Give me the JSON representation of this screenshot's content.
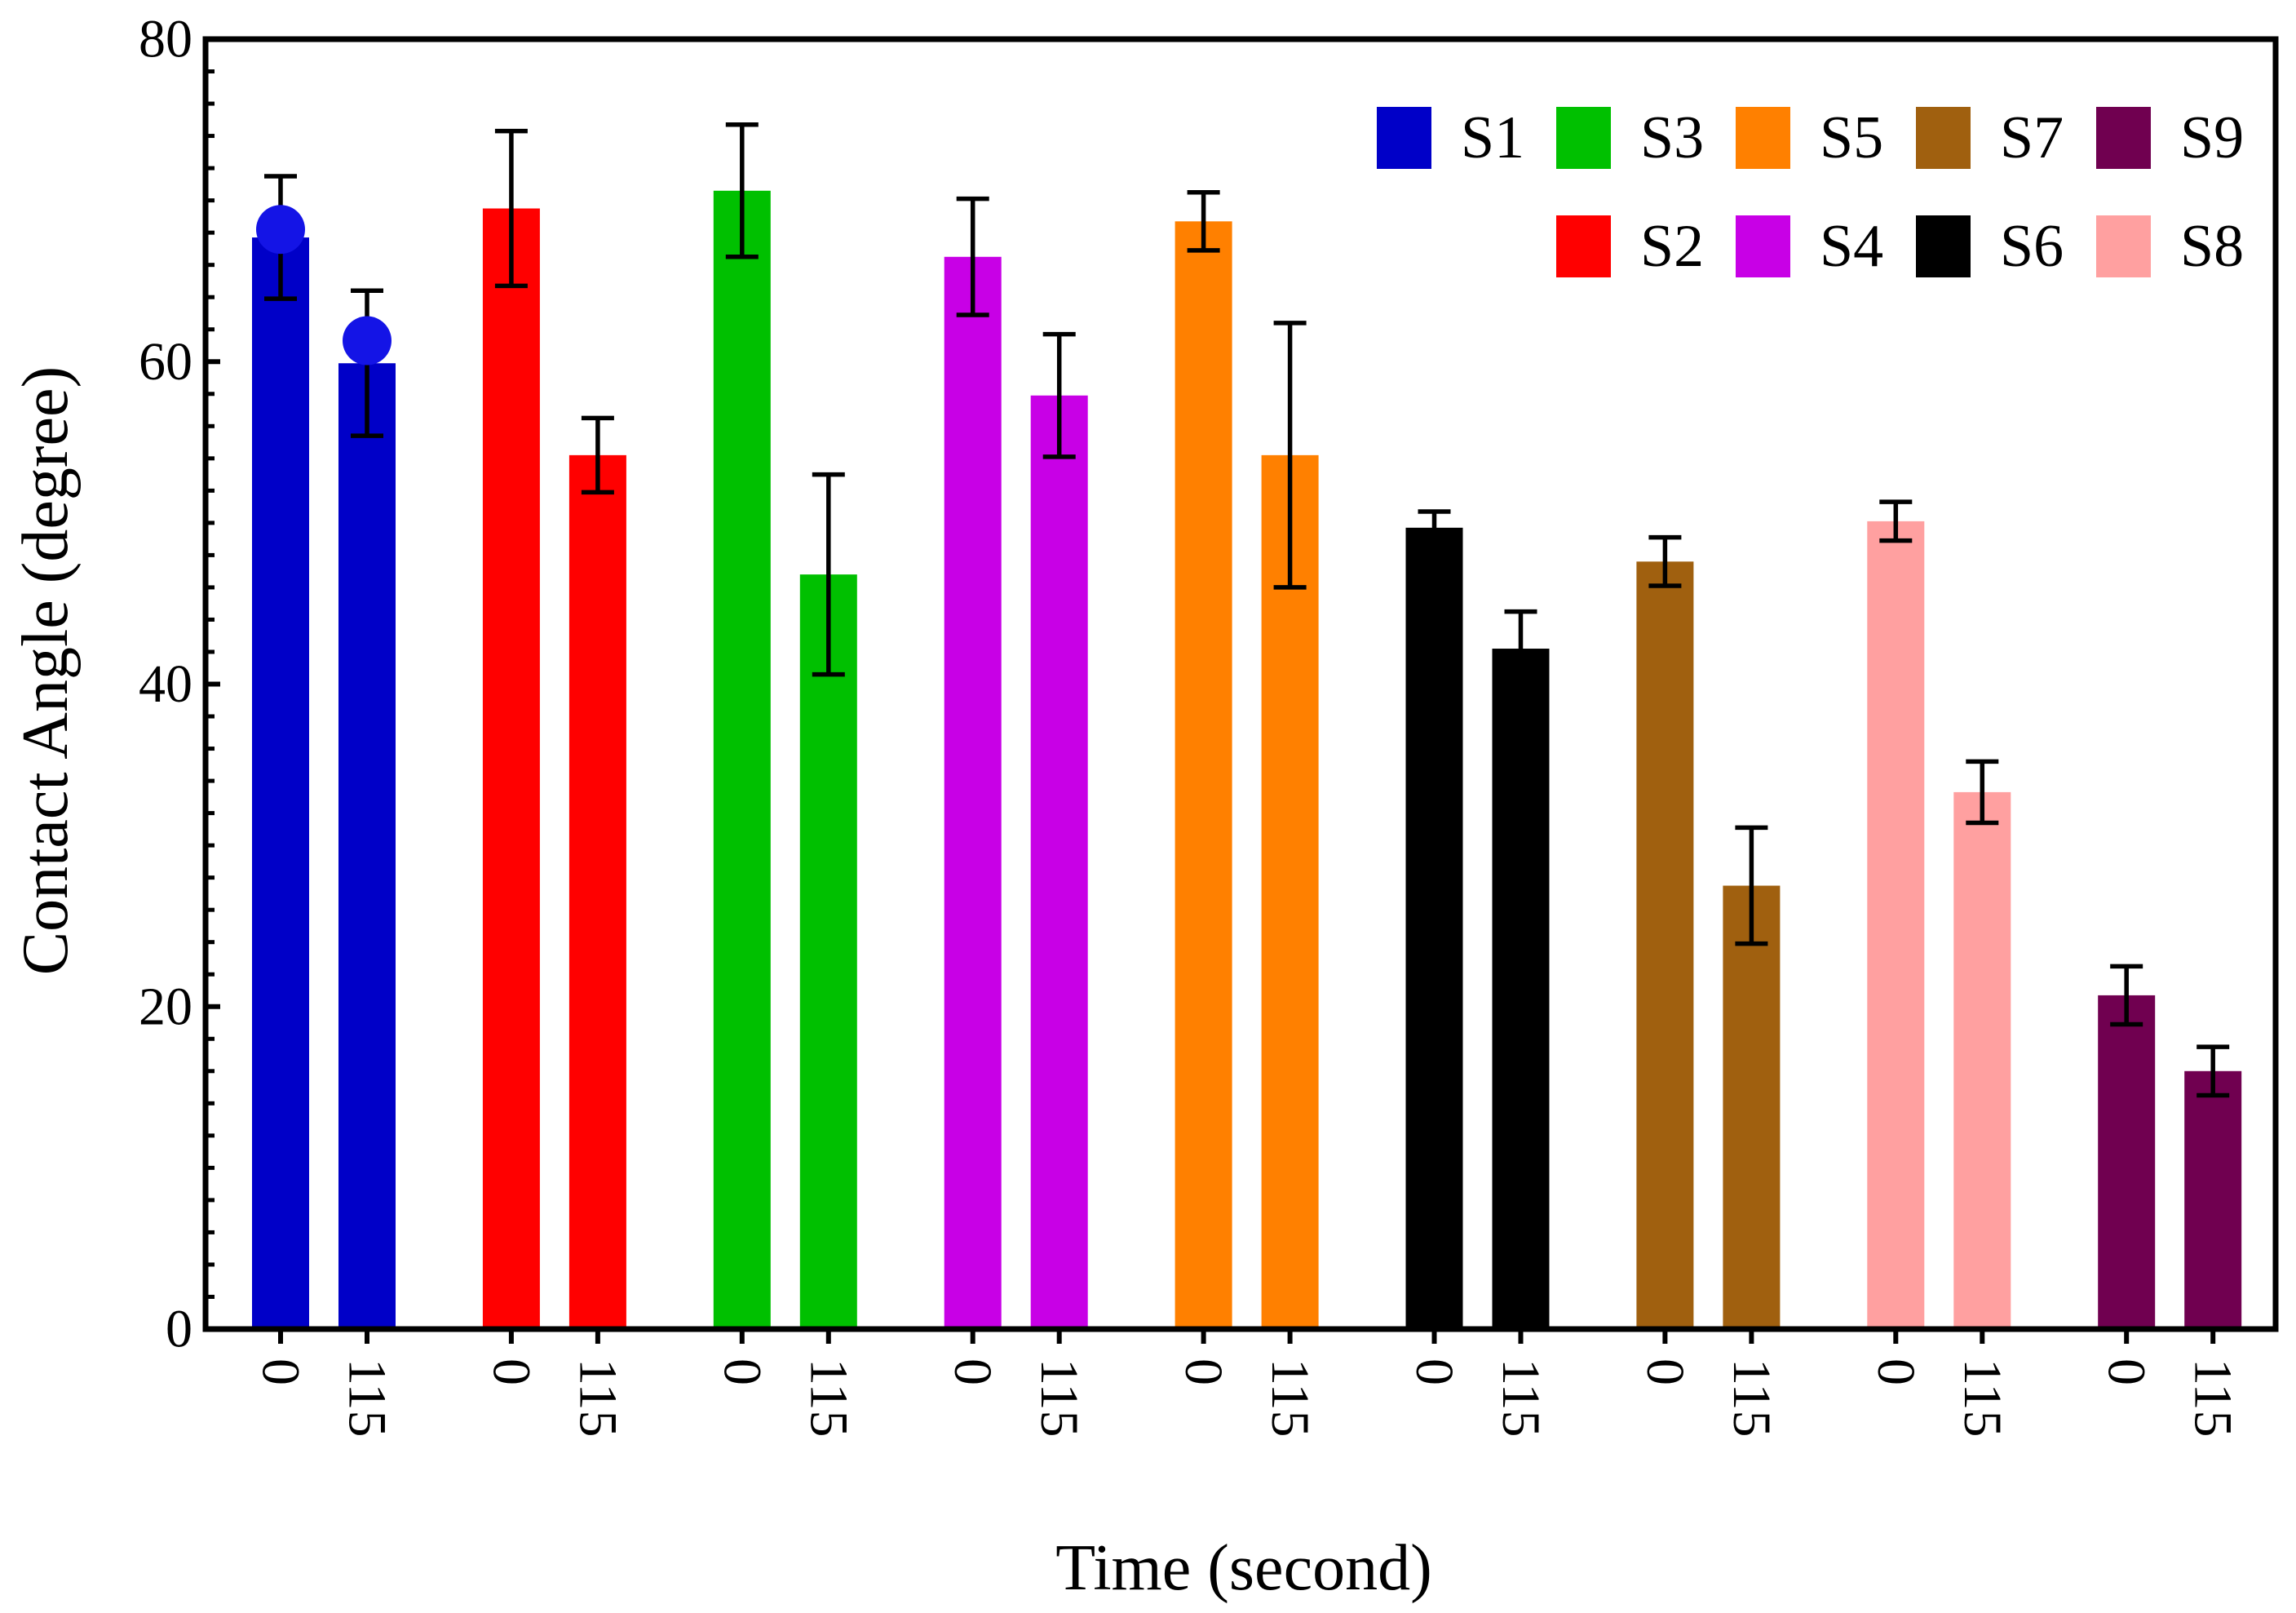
{
  "chart_data": {
    "type": "bar",
    "xlabel": "Time (second)",
    "ylabel": "Contact Angle (degree)",
    "ylim": [
      0,
      80
    ],
    "yticks": [
      0,
      20,
      40,
      60,
      80
    ],
    "y_minor_step": 2,
    "categories": [
      "0",
      "115"
    ],
    "grid": false,
    "legend_position": "top-right",
    "series": [
      {
        "name": "S1",
        "color": "#0000c8",
        "values": [
          67.7,
          59.9
        ],
        "errors": [
          3.8,
          4.5
        ],
        "points": [
          68.2,
          61.3
        ],
        "point_color": "#1414e6"
      },
      {
        "name": "S2",
        "color": "#ff0000",
        "values": [
          69.5,
          54.2
        ],
        "errors": [
          4.8,
          2.3
        ]
      },
      {
        "name": "S3",
        "color": "#00c000",
        "values": [
          70.6,
          46.8
        ],
        "errors": [
          4.1,
          6.2
        ]
      },
      {
        "name": "S4",
        "color": "#c800e6",
        "values": [
          66.5,
          57.9
        ],
        "errors": [
          3.6,
          3.8
        ]
      },
      {
        "name": "S5",
        "color": "#ff8000",
        "values": [
          68.7,
          54.2
        ],
        "errors": [
          1.8,
          8.2
        ]
      },
      {
        "name": "S6",
        "color": "#000000",
        "values": [
          49.7,
          42.2
        ],
        "errors": [
          1.0,
          2.3
        ]
      },
      {
        "name": "S7",
        "color": "#a0600f",
        "values": [
          47.6,
          27.5
        ],
        "errors": [
          1.5,
          3.6
        ]
      },
      {
        "name": "S8",
        "color": "#ffa0a0",
        "values": [
          50.1,
          33.3
        ],
        "errors": [
          1.2,
          1.9
        ]
      },
      {
        "name": "S9",
        "color": "#700050",
        "values": [
          20.7,
          16.0
        ],
        "errors": [
          1.8,
          1.5
        ]
      }
    ]
  }
}
